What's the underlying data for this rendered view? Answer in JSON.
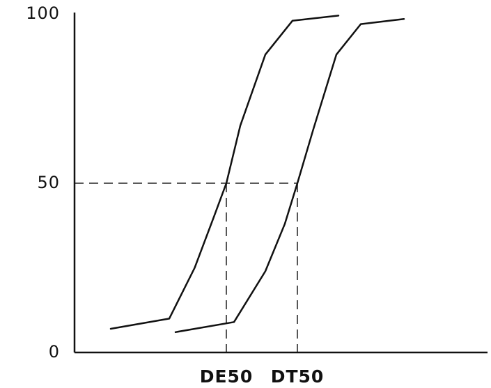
{
  "chart_data": {
    "type": "line",
    "title": "",
    "xlabel": "",
    "ylabel": "",
    "ylim": [
      0,
      100
    ],
    "yticks": [
      {
        "value": 0,
        "label": "0"
      },
      {
        "value": 50,
        "label": "50"
      },
      {
        "value": 100,
        "label": "100"
      }
    ],
    "grid": false,
    "legend": "none",
    "series": [
      {
        "x": [
          1.04,
          2.72,
          3.45,
          4.0,
          4.36,
          4.76,
          5.48,
          6.26,
          7.58
        ],
        "y": [
          7,
          10,
          25,
          40,
          50,
          67,
          88,
          98,
          99.5
        ]
      },
      {
        "x": [
          2.9,
          4.58,
          5.48,
          6.04,
          6.4,
          6.86,
          7.52,
          8.22,
          9.46
        ],
        "y": [
          6,
          9,
          24,
          38,
          50,
          66,
          88,
          97,
          98.5
        ]
      }
    ],
    "guides": {
      "y_level": 50,
      "markers": [
        {
          "x": 4.36,
          "label": "DE50"
        },
        {
          "x": 6.4,
          "label": "DT50"
        }
      ]
    }
  }
}
